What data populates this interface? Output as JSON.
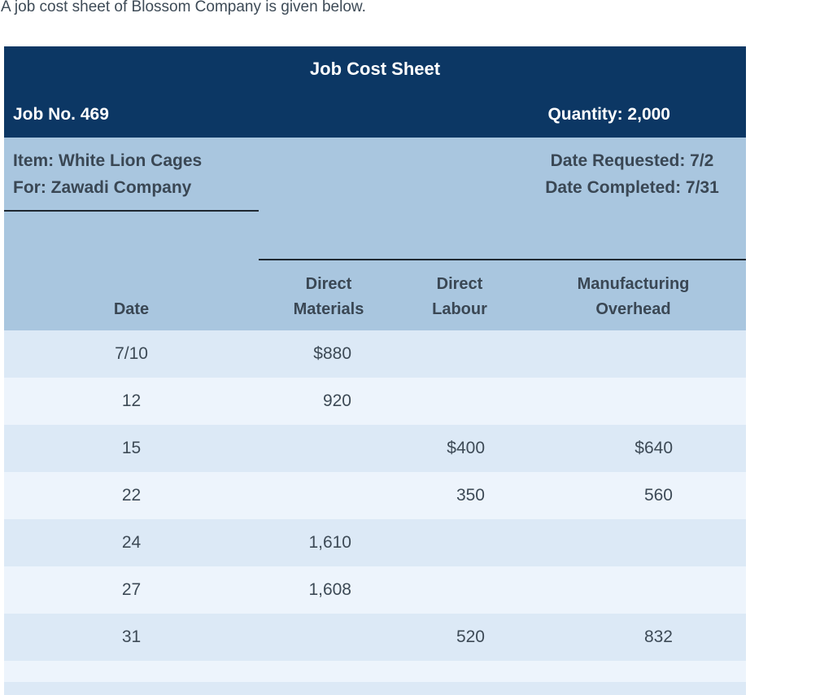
{
  "intro": "A job cost sheet of Blossom Company is given below.",
  "sheet": {
    "title": "Job Cost Sheet",
    "job_no": "Job No. 469",
    "quantity": "Quantity: 2,000",
    "item": "Item: White Lion Cages",
    "for_label": "For: Zawadi Company",
    "date_requested": "Date Requested: 7/2",
    "date_completed": "Date Completed: 7/31",
    "columns": [
      {
        "line1": "",
        "line2": "Date"
      },
      {
        "line1": "Direct",
        "line2": "Materials"
      },
      {
        "line1": "Direct",
        "line2": "Labour"
      },
      {
        "line1": "Manufacturing",
        "line2": "Overhead"
      }
    ],
    "rows": [
      [
        "7/10",
        "$880",
        "",
        ""
      ],
      [
        "12",
        "920",
        "",
        ""
      ],
      [
        "15",
        "",
        "$400",
        "$640"
      ],
      [
        "22",
        "",
        "350",
        "560"
      ],
      [
        "24",
        "1,610",
        "",
        ""
      ],
      [
        "27",
        "1,608",
        "",
        ""
      ],
      [
        "31",
        "",
        "520",
        "832"
      ]
    ]
  },
  "colors": {
    "navy_header": "#0c3764",
    "panel_blue": "#a9c6df",
    "stripe_dark": "#dce9f6",
    "stripe_light": "#edf4fc",
    "text_dark": "#3a4754",
    "rule_line": "#1f2831"
  }
}
